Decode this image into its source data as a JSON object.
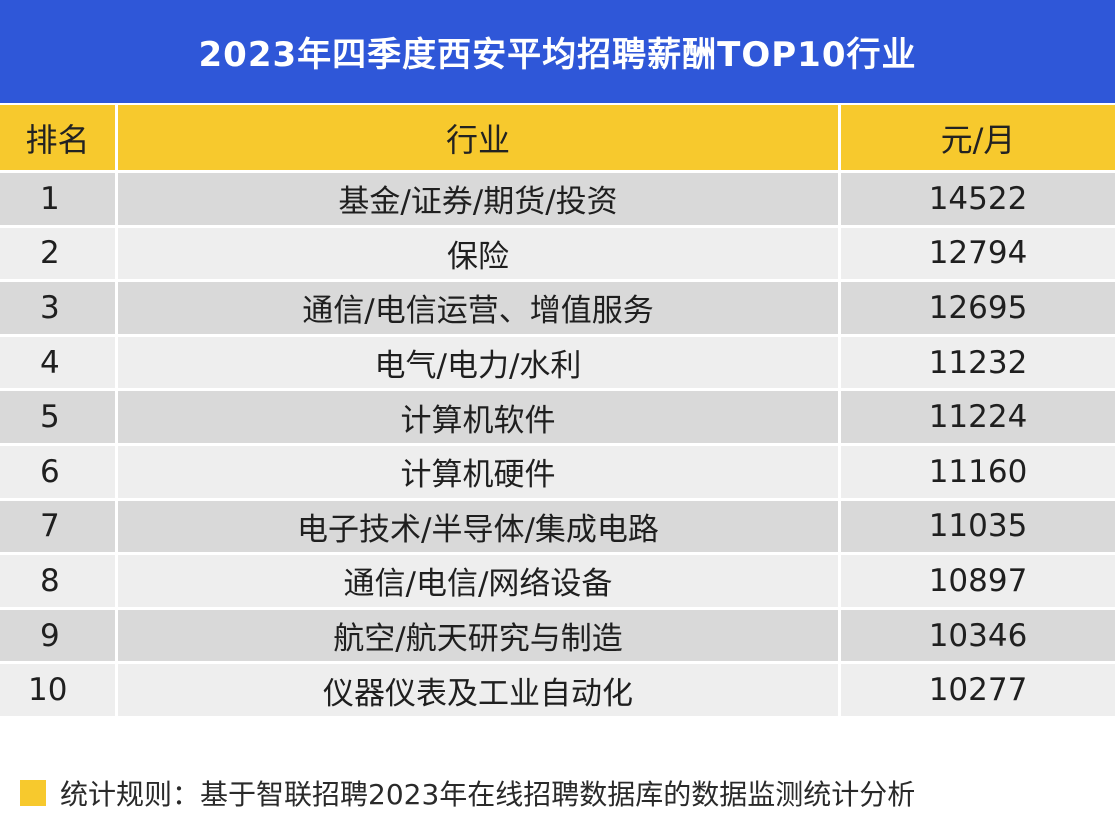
{
  "colors": {
    "title_background": "#2f57d8",
    "header_background": "#f7c92d",
    "row_dark": "#d9d9d9",
    "row_light": "#eeeeee",
    "legend_swatch": "#f7c92d"
  },
  "chart_data": {
    "type": "table",
    "title": "2023年四季度西安平均招聘薪酬TOP10行业",
    "columns": [
      "排名",
      "行业",
      "元/月"
    ],
    "rows": [
      {
        "rank": "1",
        "industry": "基金/证券/期货/投资",
        "salary": "14522"
      },
      {
        "rank": "2",
        "industry": "保险",
        "salary": "12794"
      },
      {
        "rank": "3",
        "industry": "通信/电信运营、增值服务",
        "salary": "12695"
      },
      {
        "rank": "4",
        "industry": "电气/电力/水利",
        "salary": "11232"
      },
      {
        "rank": "5",
        "industry": "计算机软件",
        "salary": "11224"
      },
      {
        "rank": "6",
        "industry": "计算机硬件",
        "salary": "11160"
      },
      {
        "rank": "7",
        "industry": "电子技术/半导体/集成电路",
        "salary": "11035"
      },
      {
        "rank": "8",
        "industry": "通信/电信/网络设备",
        "salary": "10897"
      },
      {
        "rank": "9",
        "industry": "航空/航天研究与制造",
        "salary": "10346"
      },
      {
        "rank": "10",
        "industry": "仪器仪表及工业自动化",
        "salary": "10277"
      }
    ],
    "footnote": "统计规则：基于智联招聘2023年在线招聘数据库的数据监测统计分析"
  }
}
